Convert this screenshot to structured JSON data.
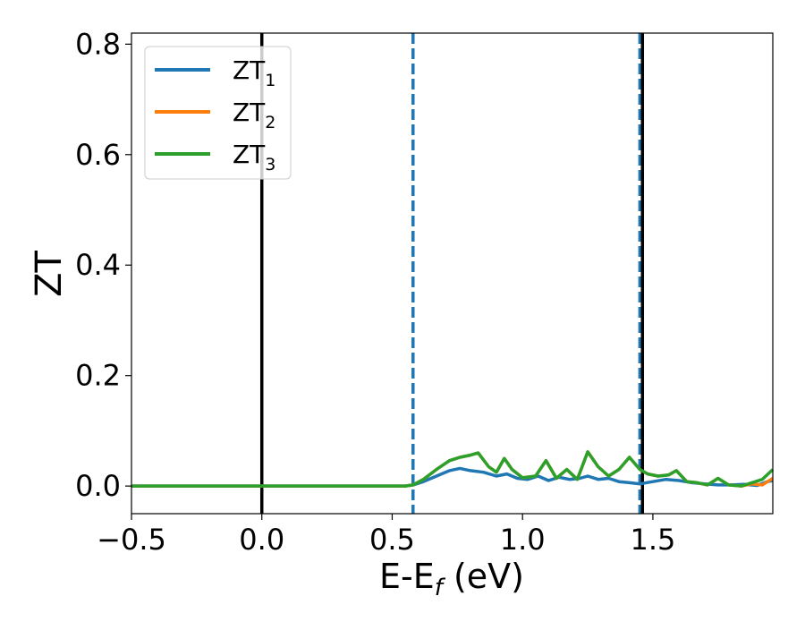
{
  "chart_data": {
    "type": "line",
    "xlabel": "E-E",
    "xlabel_sub": "f",
    "xlabel_unit": " (eV)",
    "ylabel": "ZT",
    "xlim": [
      -0.5,
      1.96
    ],
    "ylim": [
      -0.05,
      0.82
    ],
    "x_ticks": [
      -0.5,
      0.0,
      0.5,
      1.0,
      1.5
    ],
    "x_tick_labels": [
      "−0.5",
      "0.0",
      "0.5",
      "1.0",
      "1.5"
    ],
    "y_ticks": [
      0.0,
      0.2,
      0.4,
      0.6,
      0.8
    ],
    "y_tick_labels": [
      "0.0",
      "0.2",
      "0.4",
      "0.6",
      "0.8"
    ],
    "grid": false,
    "legend_position": "top-left",
    "vlines": [
      {
        "x": 0.0,
        "style": "solid",
        "color": "#000000"
      },
      {
        "x": 0.58,
        "style": "dashed",
        "color": "#1f77b4"
      },
      {
        "x": 1.45,
        "style": "dashed",
        "color": "#1f77b4"
      },
      {
        "x": 1.46,
        "style": "solid",
        "color": "#000000"
      }
    ],
    "series": [
      {
        "name": "ZT",
        "sub": "1",
        "color": "#1f77b4",
        "x": [
          -0.5,
          0.55,
          0.58,
          0.62,
          0.67,
          0.72,
          0.76,
          0.8,
          0.85,
          0.9,
          0.94,
          0.98,
          1.02,
          1.06,
          1.1,
          1.14,
          1.18,
          1.22,
          1.25,
          1.29,
          1.33,
          1.37,
          1.41,
          1.45,
          1.5,
          1.55,
          1.6,
          1.65,
          1.7,
          1.75,
          1.8,
          1.85,
          1.9,
          1.94,
          1.96
        ],
        "values": [
          0.0,
          0.0,
          0.002,
          0.008,
          0.018,
          0.028,
          0.032,
          0.028,
          0.025,
          0.018,
          0.022,
          0.014,
          0.012,
          0.018,
          0.01,
          0.016,
          0.012,
          0.014,
          0.018,
          0.012,
          0.014,
          0.008,
          0.006,
          0.004,
          0.008,
          0.012,
          0.01,
          0.006,
          0.004,
          0.002,
          0.002,
          0.003,
          0.001,
          0.008,
          0.01
        ]
      },
      {
        "name": "ZT",
        "sub": "2",
        "color": "#ff7f0e",
        "x": [
          -0.5,
          0.55,
          0.58,
          0.62,
          0.67,
          0.72,
          0.76,
          0.8,
          0.83,
          0.87,
          0.9,
          0.93,
          0.96,
          1.0,
          1.05,
          1.09,
          1.13,
          1.17,
          1.21,
          1.25,
          1.29,
          1.33,
          1.37,
          1.41,
          1.45,
          1.48,
          1.52,
          1.56,
          1.59,
          1.63,
          1.67,
          1.71,
          1.75,
          1.79,
          1.84,
          1.88,
          1.92,
          1.96
        ],
        "values": [
          0.0,
          0.0,
          0.002,
          0.012,
          0.03,
          0.046,
          0.052,
          0.056,
          0.06,
          0.035,
          0.025,
          0.05,
          0.03,
          0.015,
          0.018,
          0.046,
          0.014,
          0.03,
          0.012,
          0.062,
          0.035,
          0.018,
          0.03,
          0.052,
          0.03,
          0.022,
          0.018,
          0.02,
          0.028,
          0.008,
          0.006,
          0.002,
          0.014,
          0.002,
          0.0,
          0.004,
          0.002,
          0.014
        ]
      },
      {
        "name": "ZT",
        "sub": "3",
        "color": "#2ca02c",
        "x": [
          -0.5,
          0.55,
          0.58,
          0.62,
          0.67,
          0.72,
          0.76,
          0.8,
          0.83,
          0.87,
          0.9,
          0.93,
          0.96,
          1.0,
          1.05,
          1.09,
          1.13,
          1.17,
          1.21,
          1.25,
          1.29,
          1.33,
          1.37,
          1.41,
          1.45,
          1.48,
          1.52,
          1.56,
          1.59,
          1.63,
          1.67,
          1.71,
          1.75,
          1.79,
          1.84,
          1.88,
          1.92,
          1.96
        ],
        "values": [
          0.0,
          0.0,
          0.002,
          0.012,
          0.03,
          0.046,
          0.052,
          0.056,
          0.06,
          0.035,
          0.025,
          0.05,
          0.03,
          0.015,
          0.018,
          0.046,
          0.014,
          0.03,
          0.012,
          0.062,
          0.035,
          0.018,
          0.03,
          0.052,
          0.03,
          0.022,
          0.018,
          0.02,
          0.028,
          0.008,
          0.006,
          0.002,
          0.014,
          0.002,
          0.0,
          0.006,
          0.012,
          0.03
        ]
      }
    ]
  }
}
